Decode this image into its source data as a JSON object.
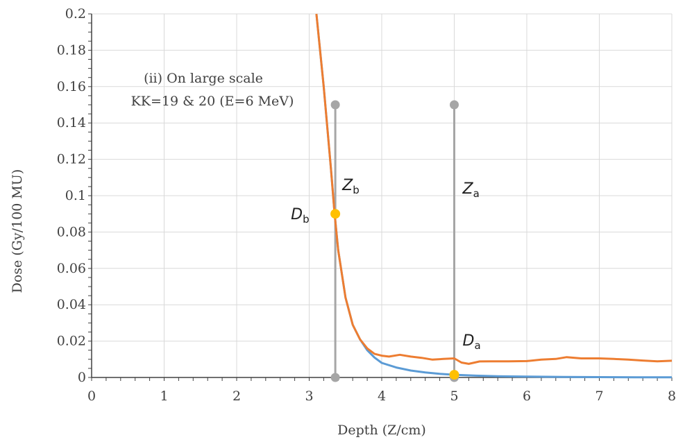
{
  "chart_data": {
    "type": "line",
    "title": "",
    "xlabel": "Depth (Z/cm)",
    "ylabel": "Dose (Gy/100 MU)",
    "xlim": [
      0,
      8
    ],
    "ylim": [
      0,
      0.2
    ],
    "xticks": [
      "0",
      "1",
      "2",
      "3",
      "4",
      "5",
      "6",
      "7",
      "8"
    ],
    "yticks": [
      "0",
      "0.02",
      "0.04",
      "0.06",
      "0.08",
      "0.1",
      "0.12",
      "0.14",
      "0.16",
      "0.18",
      "0.2"
    ],
    "grid": true,
    "annotation": {
      "line1": "(ii) On large scale",
      "line2": "KK=19 & 20 (E=6 MeV)"
    },
    "series": [
      {
        "color": "#5B9BD5",
        "x": [
          3.1,
          3.2,
          3.3,
          3.35,
          3.4,
          3.5,
          3.6,
          3.7,
          3.8,
          3.9,
          4.0,
          4.2,
          4.4,
          4.6,
          4.8,
          5.0,
          5.3,
          5.6,
          6.0,
          6.5,
          7.0,
          7.5,
          8.0
        ],
        "y": [
          0.2,
          0.16,
          0.115,
          0.09,
          0.07,
          0.044,
          0.029,
          0.021,
          0.015,
          0.011,
          0.008,
          0.0055,
          0.0038,
          0.0028,
          0.002,
          0.0015,
          0.001,
          0.0007,
          0.0005,
          0.0003,
          0.0002,
          0.0001,
          0.0001
        ]
      },
      {
        "color": "#ED7D31",
        "x": [
          3.1,
          3.2,
          3.3,
          3.35,
          3.4,
          3.5,
          3.6,
          3.7,
          3.8,
          3.9,
          4.0,
          4.1,
          4.25,
          4.4,
          4.55,
          4.7,
          4.85,
          5.0,
          5.1,
          5.2,
          5.35,
          5.5,
          5.75,
          6.0,
          6.2,
          6.4,
          6.55,
          6.75,
          7.0,
          7.2,
          7.4,
          7.6,
          7.8,
          8.0
        ],
        "y": [
          0.2,
          0.16,
          0.115,
          0.09,
          0.07,
          0.044,
          0.029,
          0.021,
          0.016,
          0.013,
          0.012,
          0.0115,
          0.0125,
          0.0115,
          0.0108,
          0.0098,
          0.0102,
          0.0105,
          0.0082,
          0.0075,
          0.0088,
          0.0089,
          0.0089,
          0.009,
          0.0098,
          0.0102,
          0.0112,
          0.0105,
          0.0105,
          0.0102,
          0.0098,
          0.0093,
          0.0089,
          0.0092
        ]
      }
    ],
    "markers": [
      {
        "label": "Z",
        "sub": "b",
        "x": 3.36,
        "y_top": 0.15,
        "y_bottom": 0
      },
      {
        "label": "Z",
        "sub": "a",
        "x": 5.0,
        "y_top": 0.15,
        "y_bottom": 0
      }
    ],
    "points": [
      {
        "label": "D",
        "sub": "b",
        "x": 3.36,
        "y": 0.09,
        "color": "#FFC000"
      },
      {
        "label": "D",
        "sub": "a",
        "x": 5.0,
        "y": 0.0015,
        "color": "#FFC000"
      }
    ]
  }
}
